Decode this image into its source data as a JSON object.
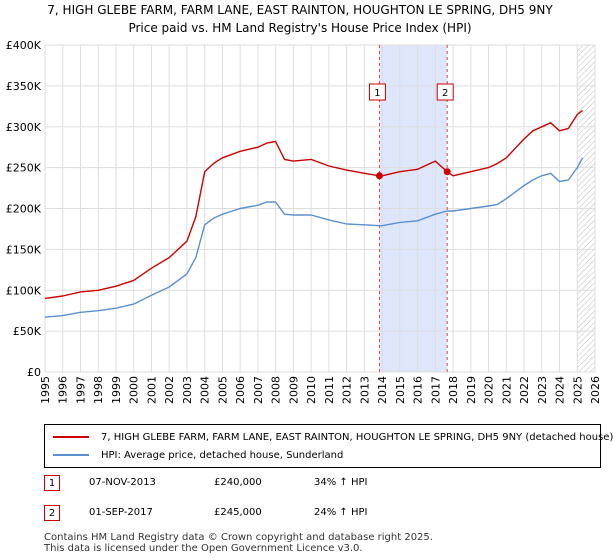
{
  "chart_data": {
    "type": "line",
    "title": "7, HIGH GLEBE FARM, FARM LANE, EAST RAINTON, HOUGHTON LE SPRING, DH5 9NY",
    "subtitle": "Price paid vs. HM Land Registry's House Price Index (HPI)",
    "xlim": [
      1995,
      2026
    ],
    "ylim": [
      0,
      400000
    ],
    "x_ticks": [
      "1995",
      "1996",
      "1997",
      "1998",
      "1999",
      "2000",
      "2001",
      "2002",
      "2003",
      "2004",
      "2005",
      "2006",
      "2007",
      "2008",
      "2009",
      "2010",
      "2011",
      "2012",
      "2013",
      "2014",
      "2015",
      "2016",
      "2017",
      "2018",
      "2019",
      "2020",
      "2021",
      "2022",
      "2023",
      "2024",
      "2025",
      "2026"
    ],
    "y_ticks": [
      {
        "value": 0,
        "label": "£0"
      },
      {
        "value": 50000,
        "label": "£50K"
      },
      {
        "value": 100000,
        "label": "£100K"
      },
      {
        "value": 150000,
        "label": "£150K"
      },
      {
        "value": 200000,
        "label": "£200K"
      },
      {
        "value": 250000,
        "label": "£250K"
      },
      {
        "value": 300000,
        "label": "£300K"
      },
      {
        "value": 350000,
        "label": "£350K"
      },
      {
        "value": 400000,
        "label": "£400K"
      }
    ],
    "grid": true,
    "shaded_period": {
      "start": 2013.85,
      "end": 2017.67,
      "color": "#dde6fb"
    },
    "hatched_from": 2025.0,
    "series": [
      {
        "name": "7, HIGH GLEBE FARM, FARM LANE, EAST RAINTON, HOUGHTON LE SPRING, DH5 9NY (detached house)",
        "color": "#cc0000",
        "x": [
          1995,
          1996,
          1997,
          1998,
          1999,
          2000,
          2001,
          2002,
          2003,
          2003.5,
          2004,
          2004.5,
          2005,
          2006,
          2007,
          2007.5,
          2008,
          2008.5,
          2009,
          2010,
          2011,
          2012,
          2013,
          2013.85,
          2014,
          2015,
          2016,
          2017,
          2017.67,
          2018,
          2019,
          2020,
          2020.5,
          2021,
          2022,
          2022.5,
          2023,
          2023.5,
          2024,
          2024.5,
          2025,
          2025.3
        ],
        "y": [
          90000,
          93000,
          98000,
          100000,
          105000,
          112000,
          127000,
          140000,
          160000,
          190000,
          245000,
          255000,
          262000,
          270000,
          275000,
          280000,
          282000,
          260000,
          258000,
          260000,
          252000,
          247000,
          243000,
          240000,
          240000,
          245000,
          248000,
          258000,
          245000,
          240000,
          245000,
          250000,
          255000,
          262000,
          285000,
          295000,
          300000,
          305000,
          295000,
          298000,
          315000,
          320000
        ]
      },
      {
        "name": "HPI: Average price, detached house, Sunderland",
        "color": "#5b8fd0",
        "x": [
          1995,
          1996,
          1997,
          1998,
          1999,
          2000,
          2001,
          2002,
          2003,
          2003.5,
          2004,
          2004.5,
          2005,
          2006,
          2007,
          2007.5,
          2008,
          2008.5,
          2009,
          2010,
          2011,
          2012,
          2013,
          2013.85,
          2014,
          2015,
          2016,
          2017,
          2017.67,
          2018,
          2019,
          2020,
          2020.5,
          2021,
          2022,
          2022.5,
          2023,
          2023.5,
          2024,
          2024.5,
          2025,
          2025.3
        ],
        "y": [
          67000,
          69000,
          73000,
          75000,
          78000,
          83000,
          94000,
          104000,
          120000,
          140000,
          180000,
          188000,
          193000,
          200000,
          204000,
          208000,
          208000,
          193000,
          192000,
          192000,
          186000,
          181000,
          180000,
          179000,
          179000,
          183000,
          185000,
          193000,
          197000,
          197000,
          200000,
          203000,
          205000,
          212000,
          228000,
          235000,
          240000,
          243000,
          233000,
          235000,
          250000,
          262000
        ]
      }
    ],
    "annotations": [
      {
        "label": "1",
        "x": 2013.85,
        "y": 240000
      },
      {
        "label": "2",
        "x": 2017.67,
        "y": 245000
      }
    ]
  },
  "legend": {
    "property": "7, HIGH GLEBE FARM, FARM LANE, EAST RAINTON, HOUGHTON LE SPRING, DH5 9NY (detached house)",
    "hpi": "HPI: Average price, detached house, Sunderland"
  },
  "transactions": [
    {
      "num": "1",
      "date": "07-NOV-2013",
      "price": "£240,000",
      "hpi": "34% ↑ HPI"
    },
    {
      "num": "2",
      "date": "01-SEP-2017",
      "price": "£245,000",
      "hpi": "24% ↑ HPI"
    }
  ],
  "footer": {
    "line1": "Contains HM Land Registry data © Crown copyright and database right 2025.",
    "line2": "This data is licensed under the Open Government Licence v3.0."
  }
}
